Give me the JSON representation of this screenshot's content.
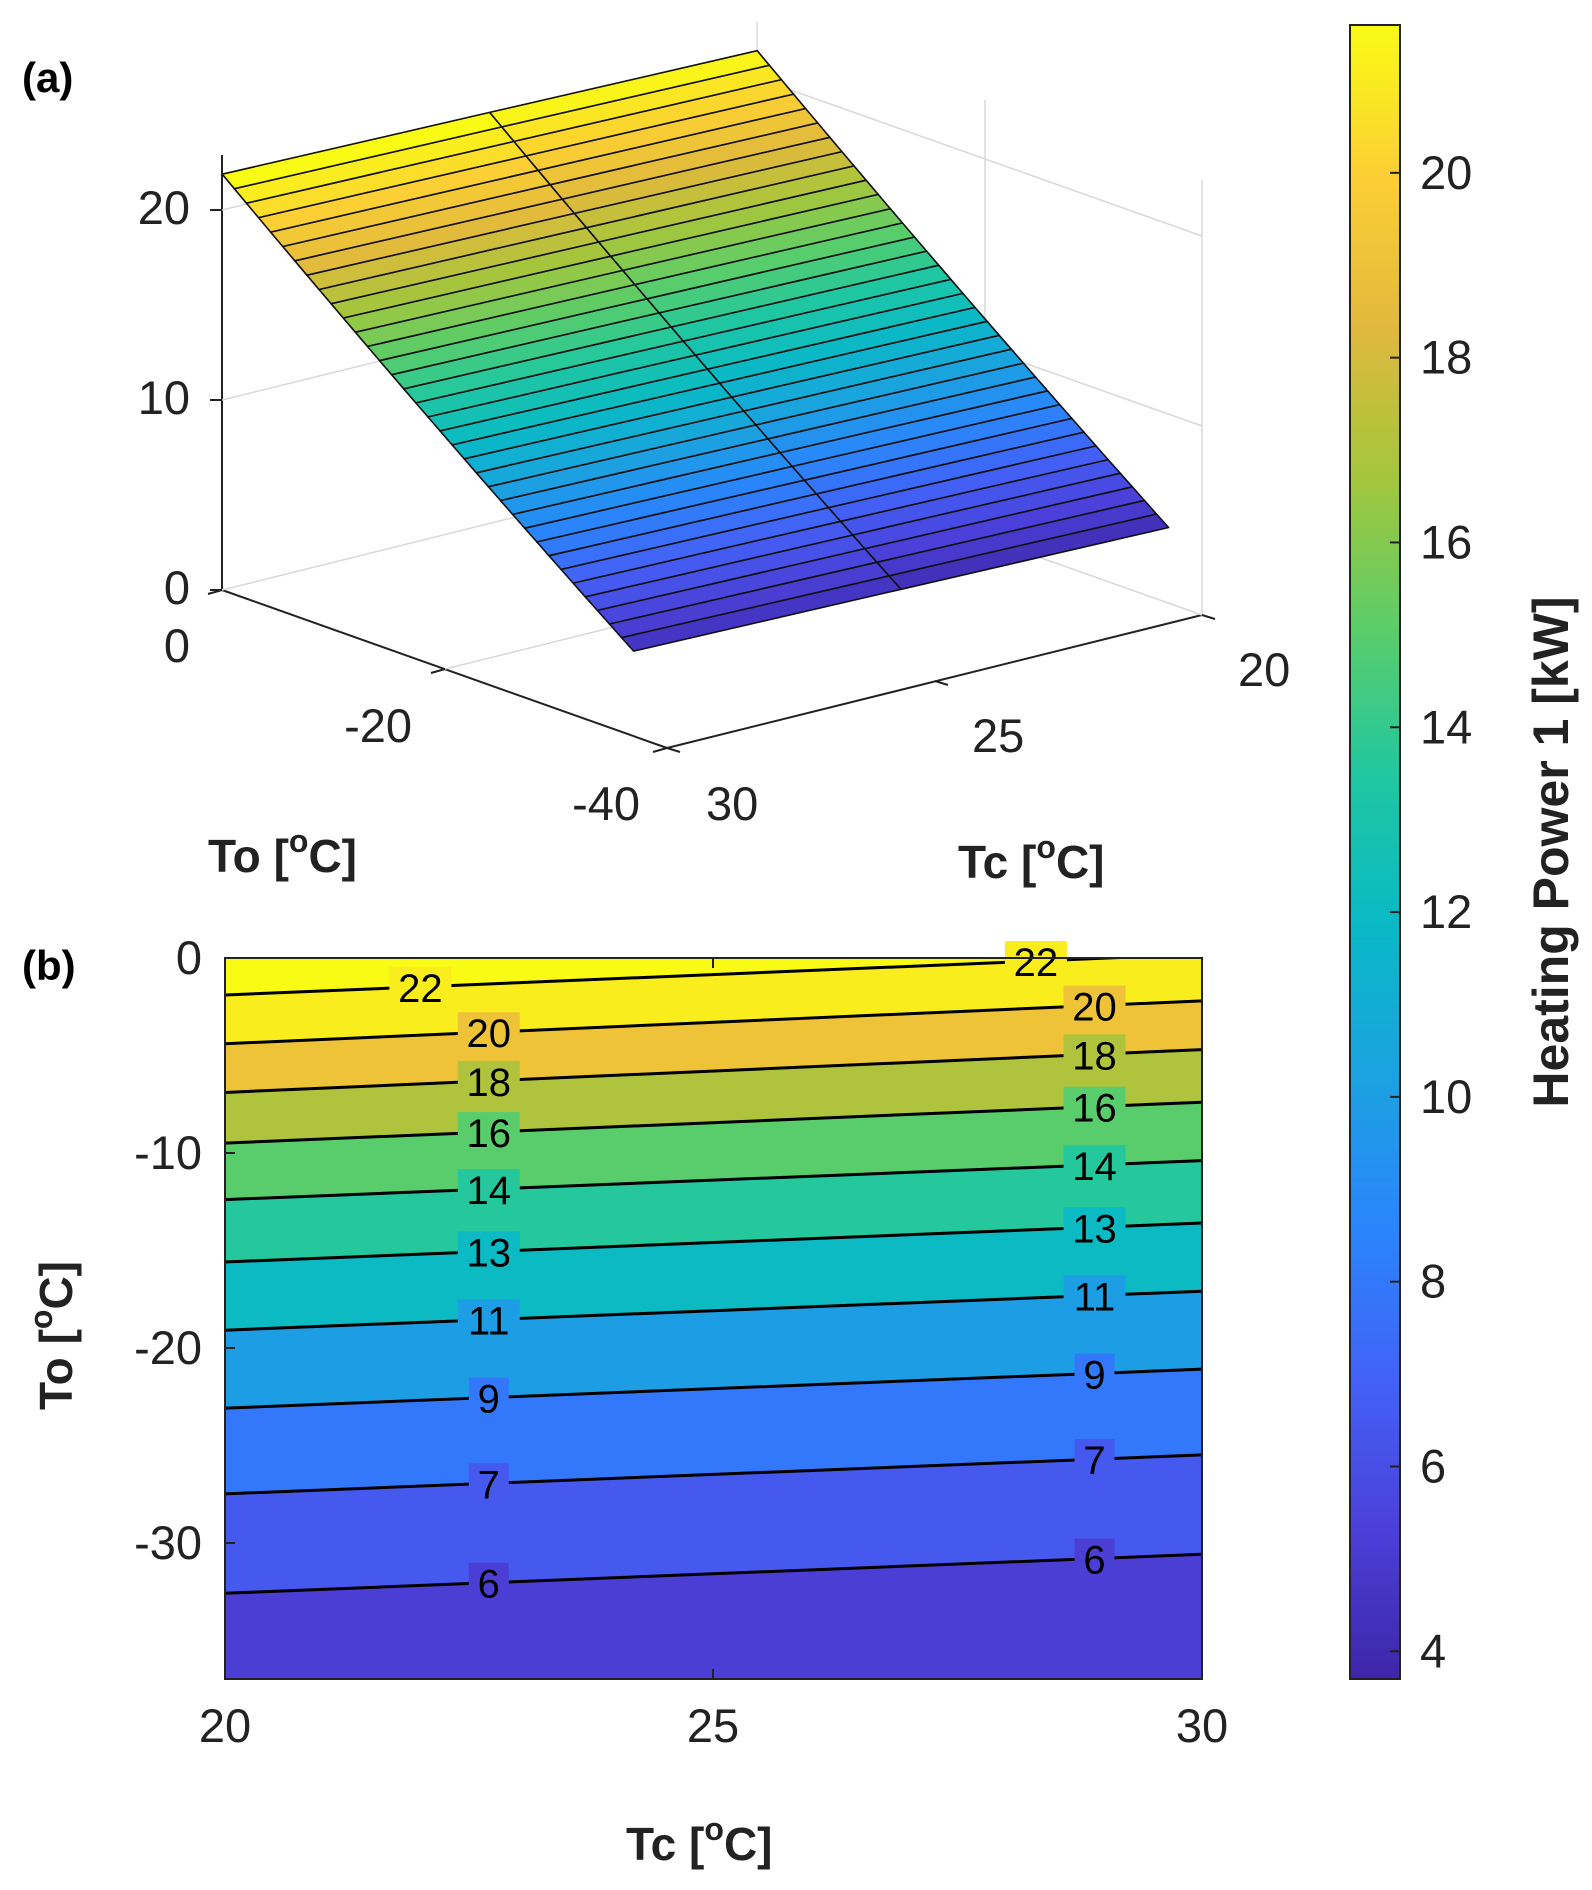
{
  "panel_labels": {
    "a": "(a)",
    "b": "(b)"
  },
  "colormap": [
    "#3e26a8",
    "#4b40d9",
    "#4262f7",
    "#2a85fc",
    "#1ba2e0",
    "#09b9c6",
    "#1fc7a1",
    "#5ccd68",
    "#a4c63c",
    "#e1b93c",
    "#fccf34",
    "#f9fb14"
  ],
  "chart_data": [
    {
      "type": "surface",
      "panel": "(a)",
      "xlabel": "Tc",
      "ylabel": "To",
      "xlim": [
        20,
        30
      ],
      "ylim": [
        -40,
        0
      ],
      "zlim": [
        0,
        23
      ],
      "x_ticks": [
        "20",
        "25",
        "30"
      ],
      "y_ticks": [
        "0",
        "-20",
        "-40"
      ],
      "z_ticks": [
        "0",
        "10",
        "20"
      ],
      "surface_min_kW": 4.0,
      "surface_max_kW": 21.5,
      "surface_note": "Heating power rises from about 4 kW at To=-37 C to about 21.5 kW at To=0 C; weak increase with Tc"
    },
    {
      "type": "contour",
      "panel": "(b)",
      "xlabel": "Tc",
      "ylabel": "To",
      "xlim": [
        20,
        30
      ],
      "ylim": [
        -37,
        0
      ],
      "x_ticks": [
        "20",
        "25",
        "30"
      ],
      "y_ticks": [
        "0",
        "-10",
        "-20",
        "-30"
      ],
      "levels": [
        {
          "label": "22",
          "to_at_tc20": -1.9,
          "to_at_tc30": 0.2
        },
        {
          "label": "20",
          "to_at_tc20": -4.4,
          "to_at_tc30": -2.2
        },
        {
          "label": "18",
          "to_at_tc20": -6.9,
          "to_at_tc30": -4.7
        },
        {
          "label": "16",
          "to_at_tc20": -9.5,
          "to_at_tc30": -7.4
        },
        {
          "label": "14",
          "to_at_tc20": -12.4,
          "to_at_tc30": -10.4
        },
        {
          "label": "13",
          "to_at_tc20": -15.6,
          "to_at_tc30": -13.6
        },
        {
          "label": "11",
          "to_at_tc20": -19.1,
          "to_at_tc30": -17.1
        },
        {
          "label": "9",
          "to_at_tc20": -23.1,
          "to_at_tc30": -21.1
        },
        {
          "label": "7",
          "to_at_tc20": -27.5,
          "to_at_tc30": -25.5
        },
        {
          "label": "6",
          "to_at_tc20": -32.6,
          "to_at_tc30": -30.6
        }
      ]
    },
    {
      "type": "colorbar",
      "label": "Heating Power 1 [kW]",
      "range": [
        3.7,
        21.6
      ],
      "ticks": [
        "4",
        "6",
        "8",
        "10",
        "12",
        "14",
        "16",
        "18",
        "20"
      ]
    }
  ],
  "labels": {
    "a_x": "Tc",
    "a_y": "To",
    "b_x": "Tc",
    "b_y": "To",
    "unit_open": " [",
    "unit_sup": "o",
    "unit_close": "C]"
  }
}
